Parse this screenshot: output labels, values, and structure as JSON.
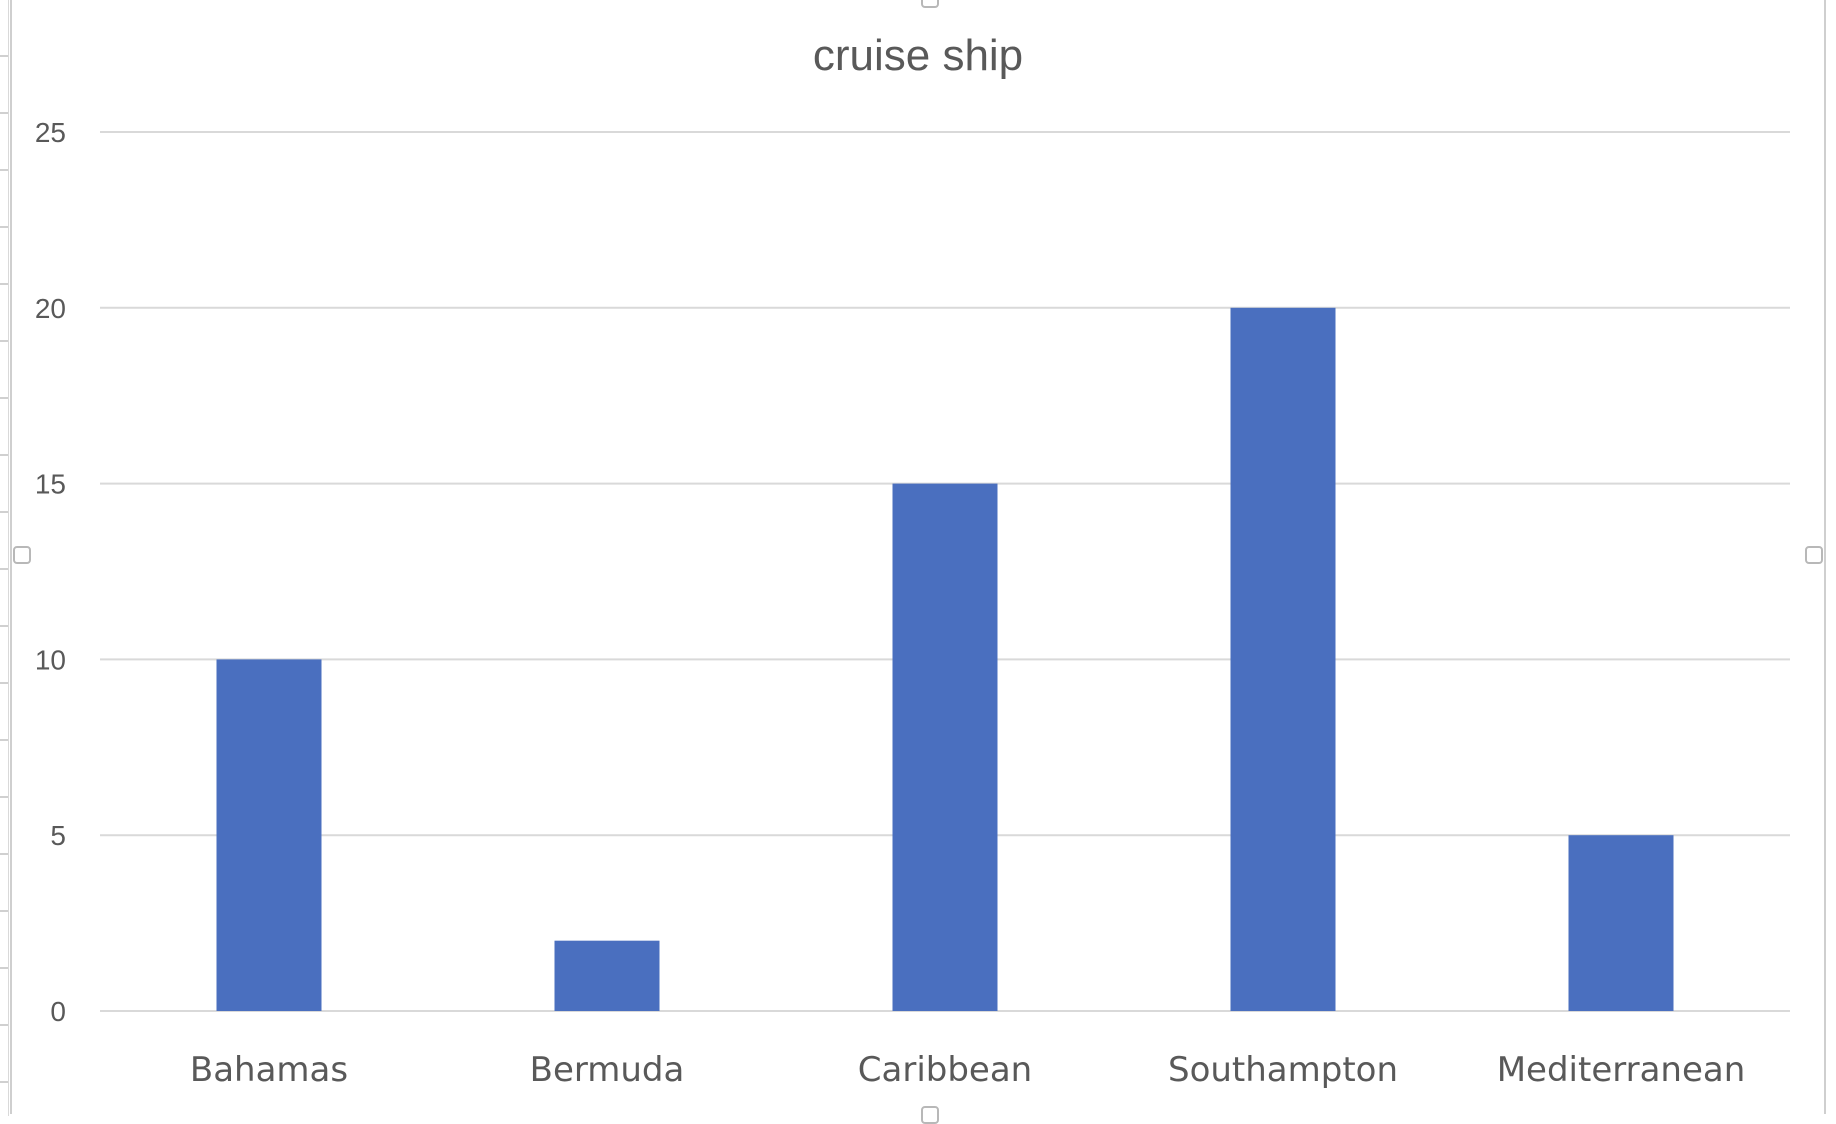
{
  "chart_data": {
    "type": "bar",
    "title": "cruise ship",
    "categories": [
      "Bahamas",
      "Bermuda",
      "Caribbean",
      "Southampton",
      "Mediterranean"
    ],
    "values": [
      10,
      2,
      15,
      20,
      5
    ],
    "ylim": [
      0,
      25
    ],
    "yticks": [
      "0",
      "5",
      "10",
      "15",
      "20",
      "25"
    ],
    "ytick_values": [
      0,
      5,
      10,
      15,
      20,
      25
    ],
    "grid": true,
    "legend": "none",
    "bar_color": "#4A6FBF",
    "grid_color": "#D9D9D9",
    "text_color": "#595959"
  }
}
